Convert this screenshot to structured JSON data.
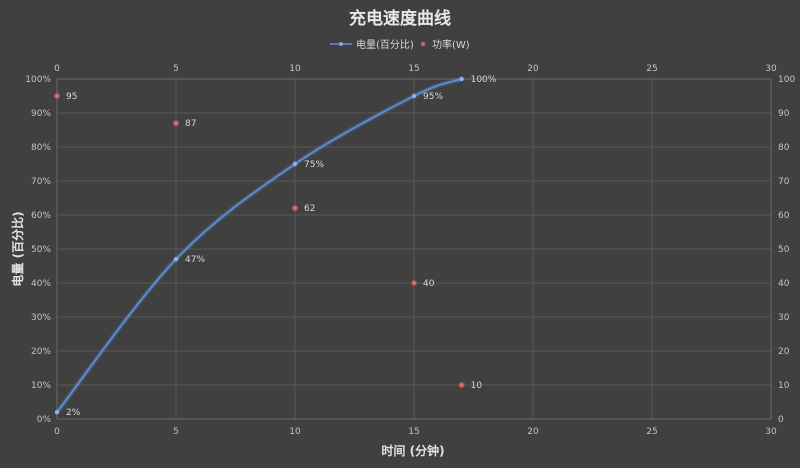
{
  "chart_data": {
    "type": "scatter",
    "title": "充电速度曲线",
    "xlabel": "时间 (分钟)",
    "ylabel": "电量 (百分比)",
    "xlim": [
      0,
      30
    ],
    "x_ticks": [
      0,
      5,
      10,
      15,
      20,
      25,
      30
    ],
    "ylim_left": [
      0,
      100
    ],
    "left_ticks": [
      "0%",
      "10%",
      "20%",
      "30%",
      "40%",
      "50%",
      "60%",
      "70%",
      "80%",
      "90%",
      "100%"
    ],
    "ylim_right": [
      0,
      100
    ],
    "right_ticks": [
      "0",
      "10",
      "20",
      "30",
      "40",
      "50",
      "60",
      "70",
      "80",
      "90",
      "100"
    ],
    "grid": true,
    "legend_position": "top-center",
    "series": [
      {
        "name": "电量(百分比)",
        "kind": "smooth-line",
        "axis": "left",
        "color": "#5b8fd8",
        "x": [
          0,
          5,
          10,
          15,
          17
        ],
        "y": [
          2,
          47,
          75,
          95,
          100
        ],
        "labels": [
          "2%",
          "47%",
          "75%",
          "95%",
          "100%"
        ]
      },
      {
        "name": "功率(W)",
        "kind": "markers",
        "axis": "right",
        "color": "#d95c5c",
        "x": [
          0,
          5,
          10,
          15,
          17
        ],
        "y": [
          95,
          87,
          62,
          40,
          10
        ],
        "labels": [
          "95",
          "87",
          "62",
          "40",
          "10"
        ]
      }
    ]
  }
}
